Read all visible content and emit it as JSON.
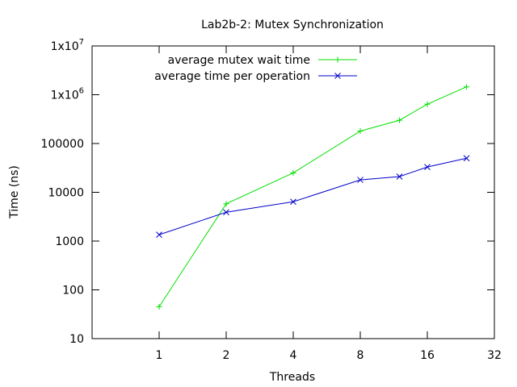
{
  "chart_data": {
    "type": "line",
    "title": "Lab2b-2: Mutex Synchronization",
    "xlabel": "Threads",
    "ylabel": "Time (ns)",
    "x_scale": "log2",
    "y_scale": "log10",
    "xlim": [
      0.5,
      32
    ],
    "ylim": [
      10,
      10000000
    ],
    "grid": false,
    "legend_position": "top-left",
    "x_ticks": [
      {
        "value": 1,
        "label": "1"
      },
      {
        "value": 2,
        "label": "2"
      },
      {
        "value": 4,
        "label": "4"
      },
      {
        "value": 8,
        "label": "8"
      },
      {
        "value": 16,
        "label": "16"
      },
      {
        "value": 32,
        "label": "32"
      }
    ],
    "y_ticks": [
      {
        "value": 10,
        "label": "10",
        "exp": ""
      },
      {
        "value": 100,
        "label": "100",
        "exp": ""
      },
      {
        "value": 1000,
        "label": "1000",
        "exp": ""
      },
      {
        "value": 10000,
        "label": "10000",
        "exp": ""
      },
      {
        "value": 100000,
        "label": "100000",
        "exp": ""
      },
      {
        "value": 1000000,
        "label": "1x10",
        "exp": "6"
      },
      {
        "value": 10000000,
        "label": "1x10",
        "exp": "7"
      }
    ],
    "series": [
      {
        "name": "average mutex wait time",
        "color": "#00e000",
        "marker": "plus",
        "x": [
          1,
          2,
          4,
          8,
          12,
          16,
          24
        ],
        "y": [
          45,
          5800,
          25000,
          180000,
          300000,
          640000,
          1450000
        ]
      },
      {
        "name": "average time per operation",
        "color": "#0000c8",
        "marker": "cross",
        "x": [
          1,
          2,
          4,
          8,
          12,
          16,
          24
        ],
        "y": [
          1350,
          3900,
          6400,
          18000,
          21000,
          33000,
          50000
        ]
      }
    ]
  }
}
